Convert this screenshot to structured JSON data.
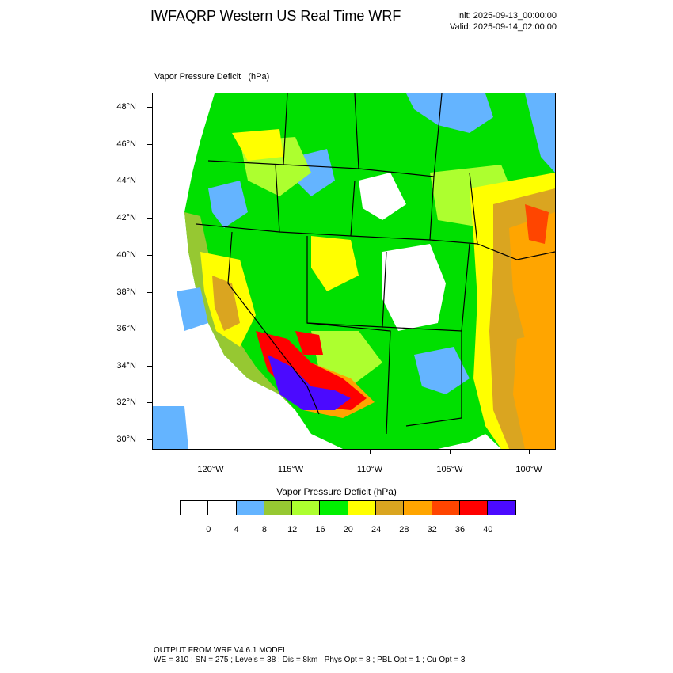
{
  "header": {
    "title": "IWFAQRP Western US Real Time WRF",
    "init": "Init: 2025-09-13_00:00:00",
    "valid": "Valid: 2025-09-14_02:00:00"
  },
  "map": {
    "field_label": "Vapor Pressure Deficit   (hPa)",
    "lat_labels": [
      "48°N",
      "46°N",
      "44°N",
      "42°N",
      "40°N",
      "38°N",
      "36°N",
      "34°N",
      "32°N",
      "30°N"
    ],
    "lon_labels": [
      "120°W",
      "115°W",
      "110°W",
      "105°W",
      "100°W"
    ],
    "extent": {
      "lon_min": -123.6,
      "lon_max": -98.4,
      "lat_min": 29.4,
      "lat_max": 48.8
    }
  },
  "colorbar": {
    "title": "Vapor Pressure Deficit  (hPa)",
    "colors": [
      "#ffffff",
      "#ffffff",
      "#64b4ff",
      "#96c832",
      "#adff2f",
      "#00f000",
      "#ffff00",
      "#daa520",
      "#ffa500",
      "#ff4500",
      "#ff0000",
      "#4b0aff"
    ],
    "labels": [
      "0",
      "4",
      "8",
      "12",
      "16",
      "20",
      "24",
      "28",
      "32",
      "36",
      "40"
    ]
  },
  "footer": {
    "line1": "OUTPUT FROM WRF V4.6.1 MODEL",
    "line2": "WE = 310 ; SN = 275 ; Levels = 38 ; Dis = 8km ; Phys Opt = 8 ; PBL Opt = 1 ; Cu Opt = 3"
  }
}
